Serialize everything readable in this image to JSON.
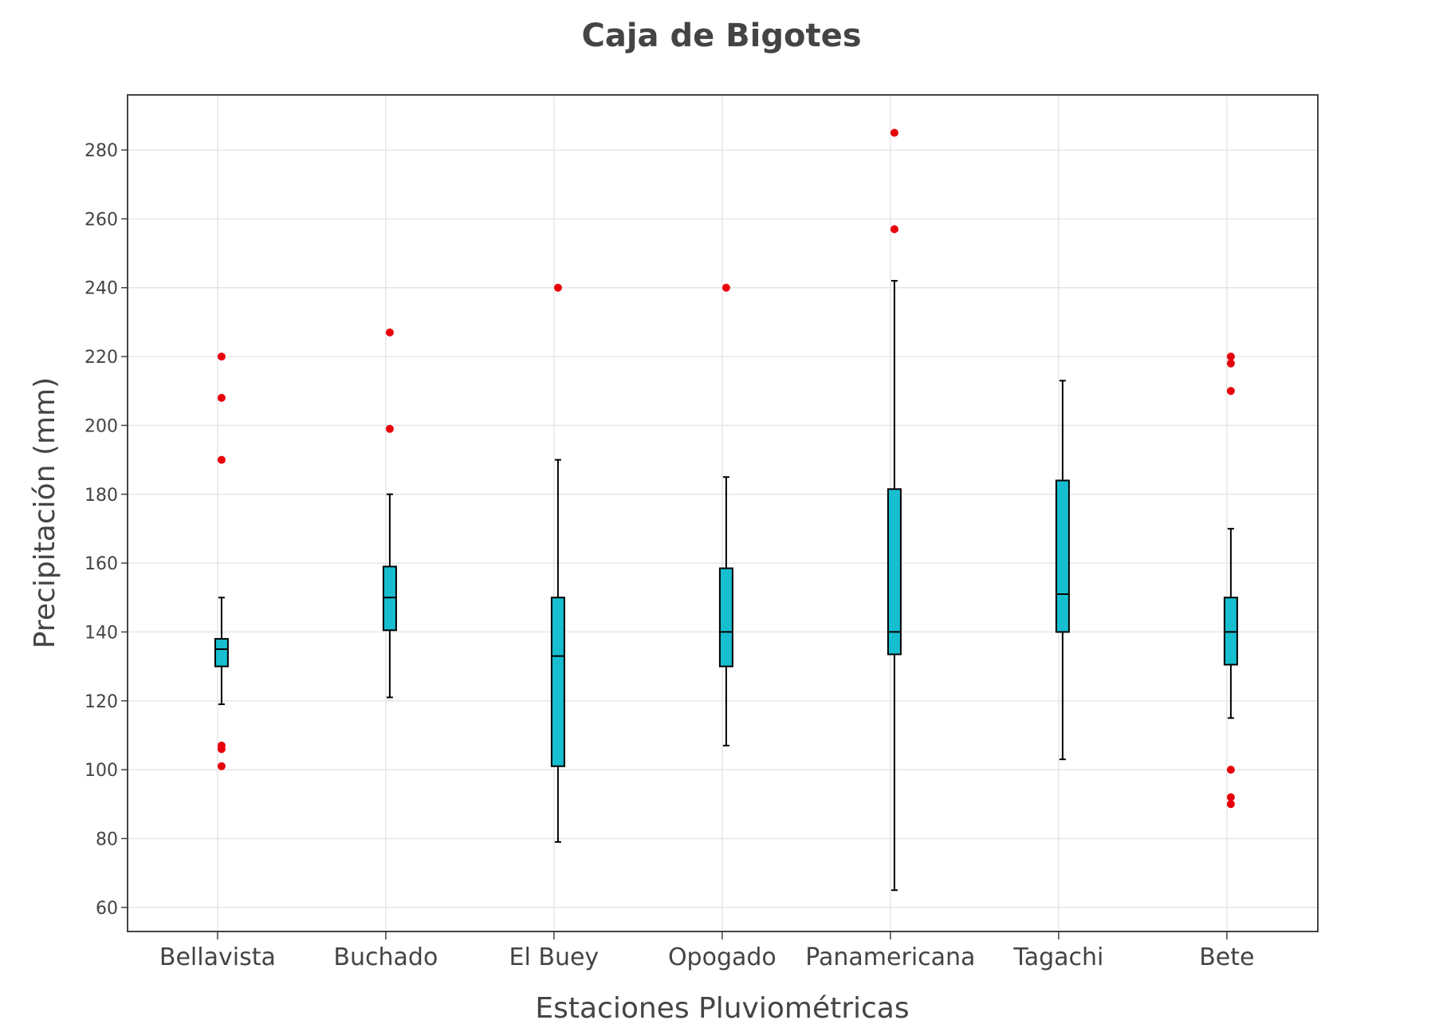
{
  "chart_data": {
    "type": "box",
    "title": "Caja de Bigotes",
    "xlabel": "Estaciones Pluviométricas",
    "ylabel": "Precipitación (mm)",
    "ylim": [
      53,
      296
    ],
    "yticks": [
      60,
      80,
      100,
      120,
      140,
      160,
      180,
      200,
      220,
      240,
      260,
      280
    ],
    "grid": true,
    "colors": {
      "box_fill": "#17becf",
      "outlier": "#e8000b",
      "line": "#000000",
      "grid": "#e6e6e6"
    },
    "categories": [
      "Bellavista",
      "Buchado",
      "El Buey",
      "Opogado",
      "Panamericana",
      "Tagachi",
      "Bete"
    ],
    "boxes": [
      {
        "category": "Bellavista",
        "min": 119,
        "q1": 130,
        "median": 135,
        "q3": 138,
        "max": 150,
        "outliers": [
          220,
          208,
          190,
          107,
          106,
          101
        ]
      },
      {
        "category": "Buchado",
        "min": 121,
        "q1": 140.5,
        "median": 150,
        "q3": 159,
        "max": 180,
        "outliers": [
          227,
          199
        ]
      },
      {
        "category": "El Buey",
        "min": 79,
        "q1": 101,
        "median": 133,
        "q3": 150,
        "max": 190,
        "outliers": [
          240
        ]
      },
      {
        "category": "Opogado",
        "min": 107,
        "q1": 130,
        "median": 140,
        "q3": 158.5,
        "max": 185,
        "outliers": [
          240
        ]
      },
      {
        "category": "Panamericana",
        "min": 65,
        "q1": 133.5,
        "median": 140,
        "q3": 181.5,
        "max": 242,
        "outliers": [
          285,
          257
        ]
      },
      {
        "category": "Tagachi",
        "min": 103,
        "q1": 140,
        "median": 151,
        "q3": 184,
        "max": 213,
        "outliers": []
      },
      {
        "category": "Bete",
        "min": 115,
        "q1": 130.5,
        "median": 140,
        "q3": 150,
        "max": 170,
        "outliers": [
          220,
          218,
          210,
          100,
          92,
          90
        ]
      }
    ]
  }
}
